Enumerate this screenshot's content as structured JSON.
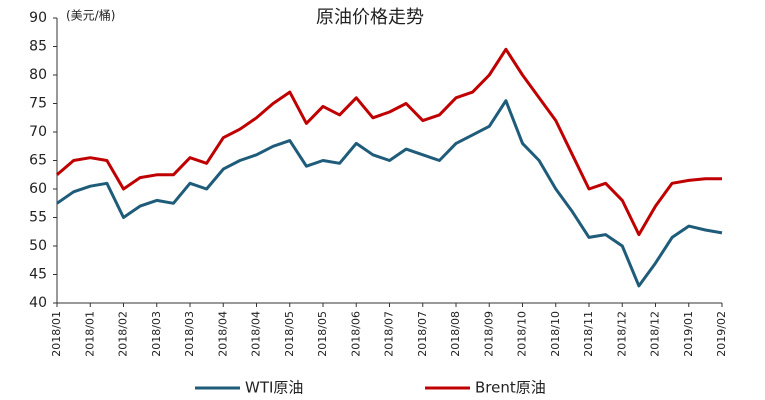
{
  "chart_data": {
    "type": "line",
    "title": "原油价格走势",
    "y_axis_label": "(美元/桶)",
    "categories": [
      "2018/01",
      null,
      "2018/01",
      null,
      "2018/02",
      null,
      "2018/03",
      null,
      "2018/03",
      null,
      "2018/04",
      null,
      "2018/04",
      null,
      "2018/05",
      null,
      "2018/05",
      null,
      "2018/06",
      null,
      "2018/07",
      null,
      "2018/07",
      null,
      "2018/08",
      null,
      "2018/09",
      null,
      "2018/10",
      null,
      "2018/10",
      null,
      "2018/11",
      null,
      "2018/12",
      null,
      "2018/12",
      null,
      "2019/01",
      null,
      "2019/02"
    ],
    "series": [
      {
        "name": "WTI原油",
        "color": "#1f5c7a",
        "values": [
          57.5,
          59.5,
          60.5,
          61,
          55,
          57,
          58,
          57.5,
          61,
          60,
          63.5,
          65,
          66,
          67.5,
          68.5,
          64,
          65,
          64.5,
          68,
          66,
          65,
          67,
          66,
          65,
          68,
          69.5,
          71,
          75.5,
          68,
          65,
          60,
          56,
          51.5,
          52,
          50,
          43,
          47,
          51.5,
          53.5,
          52.8,
          52.3
        ]
      },
      {
        "name": "Brent原油",
        "color": "#c00000",
        "values": [
          62.5,
          65,
          65.5,
          65,
          60,
          62,
          62.5,
          62.5,
          65.5,
          64.5,
          69,
          70.5,
          72.5,
          75,
          77,
          71.5,
          74.5,
          73,
          76,
          72.5,
          73.5,
          75,
          72,
          73,
          76,
          77,
          80,
          84.5,
          80,
          76,
          72,
          66,
          60,
          61,
          58,
          52,
          57,
          61,
          61.5,
          61.8,
          61.8
        ]
      }
    ],
    "ylim": [
      40,
      90
    ],
    "yticks": [
      40,
      45,
      50,
      55,
      60,
      65,
      70,
      75,
      80,
      85,
      90
    ],
    "grid": false,
    "legend": "bottom"
  }
}
